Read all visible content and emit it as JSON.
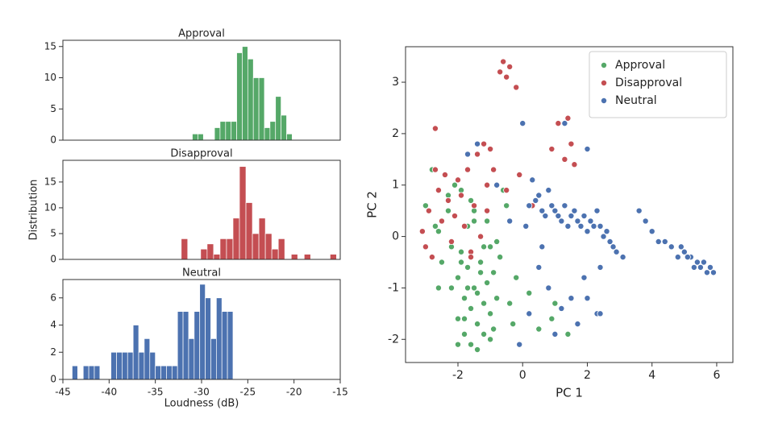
{
  "chart_data": [
    {
      "type": "histogram",
      "title": "Approval",
      "color": "#55a868",
      "bins": [
        -31,
        -30.4,
        -29.8,
        -29.2,
        -28.6,
        -28,
        -27.4,
        -26.8,
        -26.2,
        -25.6,
        -25,
        -24.4,
        -23.8,
        -23.2,
        -22.6,
        -22,
        -21.4,
        -20.8,
        -20.2
      ],
      "counts": [
        1,
        1,
        0,
        0,
        2,
        3,
        3,
        3,
        14,
        15,
        13,
        10,
        10,
        2,
        3,
        7,
        4,
        1
      ],
      "xlim": [
        -45,
        -15
      ],
      "ylim": [
        0,
        16
      ],
      "yticks": [
        0,
        5,
        10,
        15
      ]
    },
    {
      "type": "histogram",
      "title": "Disapproval",
      "color": "#c44e52",
      "ylabel": "Distribution",
      "bins": [
        -32.2,
        -31.5,
        -30.8,
        -30.1,
        -29.4,
        -28.7,
        -28,
        -27.3,
        -26.6,
        -25.9,
        -25.2,
        -24.5,
        -23.8,
        -23.1,
        -22.4,
        -21.7,
        -21,
        -20.3,
        -19.6,
        -18.9,
        -18.2,
        -17.5,
        -16.8,
        -16.1,
        -15.4
      ],
      "counts": [
        4,
        0,
        0,
        2,
        3,
        1,
        4,
        4,
        8,
        18,
        11,
        5,
        8,
        5,
        2,
        4,
        0,
        1,
        0,
        1,
        0,
        0,
        0,
        1
      ],
      "xlim": [
        -45,
        -15
      ],
      "ylim": [
        0,
        19.2
      ],
      "yticks": [
        0,
        5,
        10,
        15
      ]
    },
    {
      "type": "histogram",
      "title": "Neutral",
      "color": "#4c72b0",
      "xlabel": "Loudness (dB)",
      "bins": [
        -44,
        -43.4,
        -42.8,
        -42.2,
        -41.6,
        -41,
        -40.4,
        -39.8,
        -39.2,
        -38.6,
        -38,
        -37.4,
        -36.8,
        -36.2,
        -35.6,
        -35,
        -34.4,
        -33.8,
        -33.2,
        -32.6,
        -32,
        -31.4,
        -30.8,
        -30.2,
        -29.6,
        -29,
        -28.4,
        -27.8,
        -27.2,
        -26.6
      ],
      "counts": [
        1,
        0,
        1,
        1,
        1,
        0,
        0,
        2,
        2,
        2,
        2,
        4,
        2,
        3,
        2,
        1,
        1,
        1,
        1,
        5,
        5,
        3,
        5,
        7,
        6,
        3,
        6,
        5,
        5
      ],
      "xlim": [
        -45,
        -15
      ],
      "ylim": [
        0,
        7.35
      ],
      "yticks": [
        0,
        2,
        4,
        6
      ],
      "xticks": [
        -45,
        -40,
        -35,
        -30,
        -25,
        -20,
        -15
      ]
    },
    {
      "type": "scatter",
      "xlabel": "PC 1",
      "ylabel": "PC 2",
      "legend": "upper right",
      "xlim": [
        -3.62,
        6.5
      ],
      "ylim": [
        -2.45,
        3.69
      ],
      "xticks": [
        -2,
        0,
        2,
        4,
        6
      ],
      "yticks": [
        -2,
        -1,
        0,
        1,
        2,
        3
      ],
      "series": [
        {
          "name": "Approval",
          "color": "#55a868",
          "x": [
            -3.0,
            -2.8,
            -2.7,
            -2.5,
            -2.4,
            -2.3,
            -2.2,
            -2.2,
            -2.1,
            -2.0,
            -2.0,
            -1.9,
            -1.9,
            -1.8,
            -1.8,
            -1.7,
            -1.7,
            -1.6,
            -1.6,
            -1.5,
            -1.5,
            -1.4,
            -1.4,
            -1.3,
            -1.3,
            -1.2,
            -1.2,
            -1.1,
            -1.1,
            -1.0,
            -1.0,
            -0.9,
            -0.8,
            -0.7,
            -0.6,
            -0.5,
            -0.3,
            -0.2,
            0.2,
            0.5,
            0.9,
            1.4,
            -2.6,
            -2.3,
            -1.9,
            -1.6,
            -1.4,
            -1.2,
            -0.9,
            -1.7,
            -2.1,
            -1.5,
            -1.0,
            -0.4,
            1.0,
            -2.6,
            -1.8,
            -1.3,
            -0.8,
            -2.0
          ],
          "y": [
            0.6,
            1.3,
            0.2,
            -0.5,
            1.2,
            0.8,
            -0.2,
            -1.0,
            0.4,
            -0.8,
            -1.6,
            0.9,
            -0.3,
            -1.2,
            -1.9,
            0.2,
            -0.6,
            -1.4,
            -2.1,
            0.5,
            -1.0,
            -1.7,
            -2.2,
            0.0,
            -0.5,
            -1.3,
            -1.9,
            0.3,
            -0.9,
            -1.5,
            -2.0,
            -0.7,
            -1.2,
            -0.4,
            0.9,
            0.6,
            -1.7,
            -0.8,
            -1.1,
            -1.8,
            -1.6,
            -1.9,
            -1.0,
            0.5,
            -0.5,
            0.7,
            -1.1,
            -0.2,
            -1.8,
            -1.0,
            1.0,
            0.3,
            -0.2,
            -1.3,
            -1.3,
            0.1,
            -1.6,
            -0.7,
            -0.1,
            -2.1
          ]
        },
        {
          "name": "Disapproval",
          "color": "#c44e52",
          "x": [
            -3.1,
            -3.0,
            -2.9,
            -2.8,
            -2.7,
            -2.6,
            -2.5,
            -2.4,
            -2.3,
            -2.2,
            -2.1,
            -2.0,
            -1.9,
            -1.8,
            -1.7,
            -1.6,
            -1.5,
            -1.4,
            -1.3,
            -1.2,
            -1.1,
            -1.0,
            -0.9,
            -0.7,
            -0.6,
            -0.5,
            -0.4,
            -0.2,
            -0.1,
            0.3,
            0.9,
            1.1,
            1.3,
            1.4,
            1.5,
            1.6,
            -2.7,
            -1.6,
            -1.1,
            -0.5
          ],
          "y": [
            0.1,
            -0.2,
            0.5,
            -0.4,
            2.1,
            0.9,
            0.3,
            1.2,
            0.7,
            -0.1,
            0.4,
            1.1,
            0.8,
            0.2,
            1.3,
            -0.3,
            0.6,
            1.6,
            0.0,
            1.8,
            0.5,
            1.7,
            1.3,
            3.2,
            3.4,
            3.1,
            3.3,
            2.9,
            1.2,
            0.6,
            1.7,
            2.2,
            1.5,
            2.3,
            1.8,
            1.4,
            1.3,
            -0.4,
            1.0,
            0.9
          ]
        },
        {
          "name": "Neutral",
          "color": "#4c72b0",
          "x": [
            -1.7,
            -1.4,
            -0.8,
            -0.4,
            0.0,
            0.2,
            0.3,
            0.4,
            0.5,
            0.6,
            0.7,
            0.8,
            0.9,
            1.0,
            1.1,
            1.2,
            1.3,
            1.4,
            1.5,
            1.6,
            1.7,
            1.8,
            1.9,
            2.0,
            2.1,
            2.2,
            2.3,
            2.4,
            2.5,
            2.6,
            2.7,
            2.8,
            2.9,
            3.1,
            0.5,
            0.8,
            1.2,
            1.5,
            1.9,
            2.3,
            0.2,
            1.0,
            1.7,
            2.4,
            1.3,
            2.0,
            0.6,
            -0.1,
            3.6,
            3.8,
            4.0,
            4.2,
            4.4,
            4.6,
            4.8,
            5.0,
            5.2,
            5.3,
            5.4,
            5.5,
            5.6,
            5.7,
            5.8,
            5.9,
            4.9,
            5.1,
            5.4,
            0.1,
            2.0,
            2.4
          ],
          "y": [
            1.6,
            1.8,
            1.0,
            0.3,
            2.2,
            0.6,
            1.1,
            0.7,
            0.8,
            0.5,
            0.4,
            0.9,
            0.6,
            0.5,
            0.4,
            0.3,
            0.6,
            0.2,
            0.4,
            0.5,
            0.3,
            0.2,
            0.4,
            0.1,
            0.3,
            0.2,
            0.5,
            0.2,
            0.0,
            0.1,
            -0.1,
            -0.2,
            -0.3,
            -0.4,
            -0.6,
            -1.0,
            -1.4,
            -1.2,
            -0.8,
            -1.5,
            -1.5,
            -1.9,
            -1.7,
            -0.6,
            2.2,
            1.7,
            -0.2,
            -2.1,
            0.5,
            0.3,
            0.1,
            -0.1,
            -0.1,
            -0.2,
            -0.4,
            -0.3,
            -0.4,
            -0.6,
            -0.5,
            -0.6,
            -0.5,
            -0.7,
            -0.6,
            -0.7,
            -0.2,
            -0.4,
            -0.5,
            0.2,
            -1.2,
            -1.5
          ]
        }
      ]
    }
  ]
}
